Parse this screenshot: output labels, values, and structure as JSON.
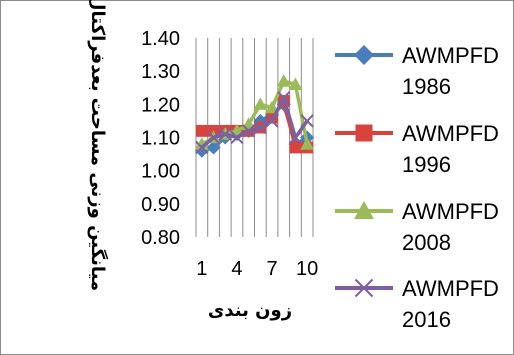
{
  "chart_data": {
    "type": "line",
    "title": "",
    "xlabel": "زون بندی",
    "ylabel": "میانگین وزنی مساحت بعدفراکتال",
    "ylim": [
      0.8,
      1.4
    ],
    "yticks": [
      "1.40",
      "1.30",
      "1.20",
      "1.10",
      "1.00",
      "0.90",
      "0.80"
    ],
    "x_tick_labels": [
      "1",
      "4",
      "7",
      "10"
    ],
    "categories": [
      1,
      2,
      3,
      4,
      5,
      6,
      7,
      8,
      9,
      10
    ],
    "grid": "vertical",
    "legend_position": "right",
    "series": [
      {
        "name": "AWMPFD 1986",
        "legend_line1": "AWMPFD",
        "legend_line2": "1986",
        "color": "#4a7ebb",
        "marker": "diamond",
        "values": [
          1.06,
          1.07,
          1.1,
          1.11,
          1.12,
          1.15,
          1.17,
          1.2,
          1.08,
          1.1
        ]
      },
      {
        "name": "AWMPFD 1996",
        "legend_line1": "AWMPFD",
        "legend_line2": "1996",
        "color": "#d9433c",
        "marker": "square",
        "values": [
          1.12,
          1.12,
          1.12,
          1.12,
          1.12,
          1.13,
          1.16,
          1.21,
          1.07,
          1.07
        ]
      },
      {
        "name": "AWMPFD 2008",
        "legend_line1": "AWMPFD",
        "legend_line2": "2008",
        "color": "#9bbb59",
        "marker": "triangle",
        "values": [
          1.08,
          1.1,
          1.11,
          1.12,
          1.14,
          1.2,
          1.19,
          1.27,
          1.26,
          1.08
        ]
      },
      {
        "name": "AWMPFD 2016",
        "legend_line1": "AWMPFD",
        "legend_line2": "2016",
        "color": "#7d60a0",
        "marker": "x",
        "values": [
          1.07,
          1.1,
          1.11,
          1.1,
          1.12,
          1.13,
          1.15,
          1.22,
          1.1,
          1.15
        ]
      }
    ]
  }
}
